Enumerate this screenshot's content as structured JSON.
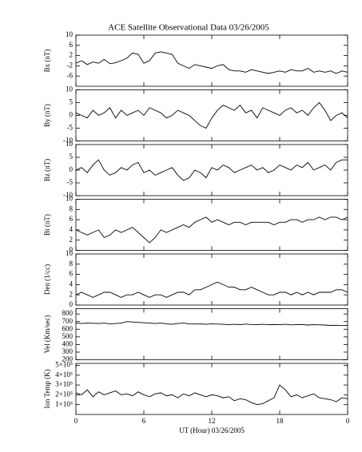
{
  "chart_data": [
    {
      "type": "line",
      "title": "ACE Satellite Observational Data   03/26/2005",
      "ylabel": "Bx (nT)",
      "color": "#000000",
      "x": [
        0,
        0.5,
        1,
        1.5,
        2,
        2.5,
        3,
        3.5,
        4,
        4.5,
        5,
        5.5,
        6,
        6.5,
        7,
        7.5,
        8,
        8.5,
        9,
        9.5,
        10,
        10.5,
        11,
        11.5,
        12,
        12.5,
        13,
        13.5,
        14,
        14.5,
        15,
        15.5,
        16,
        16.5,
        17,
        17.5,
        18,
        18.5,
        19,
        19.5,
        20,
        20.5,
        21,
        21.5,
        22,
        22.5,
        23,
        23.5,
        24
      ],
      "values": [
        -1,
        0,
        -1.5,
        -0.5,
        -1,
        0.5,
        -1.2,
        -0.8,
        0,
        1,
        3,
        2.5,
        -1,
        0,
        3,
        3.5,
        3,
        2.5,
        -1,
        -2,
        -3,
        -1.5,
        -2,
        -2.5,
        -3,
        -2,
        -1.5,
        -3.5,
        -4,
        -4,
        -4.5,
        -3.5,
        -4,
        -4.5,
        -5,
        -4.5,
        -4,
        -4.5,
        -3.5,
        -4,
        -4,
        -3,
        -4.5,
        -4,
        -4.5,
        -4,
        -5,
        -4,
        -4.5
      ],
      "ylim": [
        -10,
        10
      ],
      "yticks": [
        -6,
        -2,
        2,
        6,
        10
      ],
      "xlim": [
        0,
        24
      ],
      "xticks": [
        0,
        6,
        12,
        18,
        {
          "value": 24,
          "label": "0"
        }
      ]
    },
    {
      "type": "line",
      "ylabel": "By (nT)",
      "color": "#000000",
      "x": [
        0,
        0.5,
        1,
        1.5,
        2,
        2.5,
        3,
        3.5,
        4,
        4.5,
        5,
        5.5,
        6,
        6.5,
        7,
        7.5,
        8,
        8.5,
        9,
        9.5,
        10,
        10.5,
        11,
        11.5,
        12,
        12.5,
        13,
        13.5,
        14,
        14.5,
        15,
        15.5,
        16,
        16.5,
        17,
        17.5,
        18,
        18.5,
        19,
        19.5,
        20,
        20.5,
        21,
        21.5,
        22,
        22.5,
        23,
        23.5,
        24
      ],
      "values": [
        1,
        0,
        -1,
        2,
        0,
        1,
        3,
        -1,
        2,
        0,
        1,
        2,
        0,
        3,
        2,
        1,
        -1,
        0,
        2,
        1,
        0,
        -2,
        -4,
        -5,
        -1,
        2,
        4,
        3,
        2,
        4,
        1,
        2,
        -1,
        3,
        2,
        1,
        0,
        2,
        3,
        1,
        2,
        0,
        3,
        5,
        2,
        -2,
        0,
        1,
        -1
      ],
      "ylim": [
        -10,
        10
      ],
      "yticks": [
        -10,
        -5,
        0,
        5,
        10
      ],
      "xlim": [
        0,
        24
      ],
      "xticks": [
        0,
        6,
        12,
        18,
        {
          "value": 24,
          "label": "0"
        }
      ]
    },
    {
      "type": "line",
      "ylabel": "Bz (nT)",
      "color": "#000000",
      "x": [
        0,
        0.5,
        1,
        1.5,
        2,
        2.5,
        3,
        3.5,
        4,
        4.5,
        5,
        5.5,
        6,
        6.5,
        7,
        7.5,
        8,
        8.5,
        9,
        9.5,
        10,
        10.5,
        11,
        11.5,
        12,
        12.5,
        13,
        13.5,
        14,
        14.5,
        15,
        15.5,
        16,
        16.5,
        17,
        17.5,
        18,
        18.5,
        19,
        19.5,
        20,
        20.5,
        21,
        21.5,
        22,
        22.5,
        23,
        23.5,
        24
      ],
      "values": [
        0,
        1,
        -1,
        2,
        4,
        0,
        -2,
        -1,
        1,
        0,
        2,
        3,
        -1,
        0,
        -2,
        -1,
        0,
        1,
        -2,
        -4,
        -3,
        0,
        -1,
        -3,
        1,
        0,
        2,
        1,
        -1,
        0,
        1,
        2,
        0,
        1,
        -1,
        0,
        2,
        1,
        0,
        2,
        1,
        3,
        0,
        1,
        2,
        0,
        3,
        4,
        4
      ],
      "ylim": [
        -10,
        10
      ],
      "yticks": [
        -10,
        -5,
        0,
        5,
        10
      ],
      "xlim": [
        0,
        24
      ],
      "xticks": [
        0,
        6,
        12,
        18,
        {
          "value": 24,
          "label": "0"
        }
      ]
    },
    {
      "type": "line",
      "ylabel": "Bt (nT)",
      "color": "#000000",
      "x": [
        0,
        0.5,
        1,
        1.5,
        2,
        2.5,
        3,
        3.5,
        4,
        4.5,
        5,
        5.5,
        6,
        6.5,
        7,
        7.5,
        8,
        8.5,
        9,
        9.5,
        10,
        10.5,
        11,
        11.5,
        12,
        12.5,
        13,
        13.5,
        14,
        14.5,
        15,
        15.5,
        16,
        16.5,
        17,
        17.5,
        18,
        18.5,
        19,
        19.5,
        20,
        20.5,
        21,
        21.5,
        22,
        22.5,
        23,
        23.5,
        24
      ],
      "values": [
        4,
        3.5,
        3,
        3.5,
        4,
        2.5,
        3,
        4,
        3.5,
        4,
        4.5,
        3.5,
        2.5,
        1.5,
        2.5,
        4,
        3.5,
        4,
        4.5,
        5,
        4.5,
        5.5,
        6,
        6.5,
        5.5,
        6,
        5.5,
        5,
        5.5,
        5.5,
        5,
        5.5,
        5.5,
        5.5,
        5.5,
        5,
        5.5,
        5.5,
        6,
        6,
        5.5,
        6,
        6,
        6.5,
        6,
        6.5,
        6.5,
        6,
        6.5
      ],
      "ylim": [
        0,
        10
      ],
      "yticks": [
        0,
        2,
        4,
        6,
        8,
        10
      ],
      "xlim": [
        0,
        24
      ],
      "xticks": [
        0,
        6,
        12,
        18,
        {
          "value": 24,
          "label": "0"
        }
      ]
    },
    {
      "type": "line",
      "ylabel": "Den (1/cc)",
      "color": "#000000",
      "x": [
        0,
        0.5,
        1,
        1.5,
        2,
        2.5,
        3,
        3.5,
        4,
        4.5,
        5,
        5.5,
        6,
        6.5,
        7,
        7.5,
        8,
        8.5,
        9,
        9.5,
        10,
        10.5,
        11,
        11.5,
        12,
        12.5,
        13,
        13.5,
        14,
        14.5,
        15,
        15.5,
        16,
        16.5,
        17,
        17.5,
        18,
        18.5,
        19,
        19.5,
        20,
        20.5,
        21,
        21.5,
        22,
        22.5,
        23,
        23.5,
        24
      ],
      "values": [
        2,
        2.5,
        2,
        1.5,
        2,
        2.5,
        2.5,
        2,
        1.5,
        2,
        2,
        2.5,
        2,
        1.5,
        2,
        2,
        1.5,
        2,
        2.5,
        2.5,
        2,
        3,
        3,
        3.5,
        4,
        4.5,
        4,
        3.5,
        3.5,
        3,
        3,
        3.5,
        3,
        2.5,
        2,
        2,
        2.5,
        2.5,
        2,
        2.5,
        2,
        2.5,
        2,
        2.5,
        2.5,
        2.5,
        3,
        3,
        2.5
      ],
      "ylim": [
        0,
        10
      ],
      "yticks": [
        0,
        2,
        4,
        6,
        8,
        10
      ],
      "xlim": [
        0,
        24
      ],
      "xticks": [
        0,
        6,
        12,
        18,
        {
          "value": 24,
          "label": "0"
        }
      ]
    },
    {
      "type": "line",
      "ylabel": "Vel (Km/sec)",
      "color": "#000000",
      "x": [
        0,
        0.5,
        1,
        1.5,
        2,
        2.5,
        3,
        3.5,
        4,
        4.5,
        5,
        5.5,
        6,
        6.5,
        7,
        7.5,
        8,
        8.5,
        9,
        9.5,
        10,
        10.5,
        11,
        11.5,
        12,
        12.5,
        13,
        13.5,
        14,
        14.5,
        15,
        15.5,
        16,
        16.5,
        17,
        17.5,
        18,
        18.5,
        19,
        19.5,
        20,
        20.5,
        21,
        21.5,
        22,
        22.5,
        23,
        23.5,
        24
      ],
      "values": [
        680,
        675,
        680,
        678,
        675,
        680,
        670,
        675,
        680,
        700,
        695,
        690,
        685,
        680,
        675,
        680,
        670,
        665,
        675,
        680,
        670,
        668,
        670,
        665,
        670,
        668,
        665,
        660,
        665,
        660,
        668,
        662,
        660,
        665,
        660,
        662,
        660,
        665,
        658,
        660,
        662,
        655,
        660,
        658,
        655,
        650,
        652,
        648,
        650
      ],
      "ylim": [
        200,
        870
      ],
      "yticks": [
        200,
        300,
        400,
        500,
        600,
        700,
        800
      ],
      "xlim": [
        0,
        24
      ],
      "xticks": [
        0,
        6,
        12,
        18,
        {
          "value": 24,
          "label": "0"
        }
      ]
    },
    {
      "type": "line",
      "ylabel": "Ion Temp (K)",
      "xlabel": "UT (Hour)   03/26/2005",
      "color": "#000000",
      "x": [
        0,
        0.5,
        1,
        1.5,
        2,
        2.5,
        3,
        3.5,
        4,
        4.5,
        5,
        5.5,
        6,
        6.5,
        7,
        7.5,
        8,
        8.5,
        9,
        9.5,
        10,
        10.5,
        11,
        11.5,
        12,
        12.5,
        13,
        13.5,
        14,
        14.5,
        15,
        15.5,
        16,
        16.5,
        17,
        17.5,
        18,
        18.5,
        19,
        19.5,
        20,
        20.5,
        21,
        21.5,
        22,
        22.5,
        23,
        23.5,
        24
      ],
      "values": [
        220000,
        200000,
        250000,
        180000,
        230000,
        200000,
        220000,
        240000,
        200000,
        210000,
        190000,
        230000,
        200000,
        180000,
        210000,
        220000,
        190000,
        200000,
        170000,
        210000,
        190000,
        220000,
        200000,
        180000,
        200000,
        190000,
        170000,
        180000,
        140000,
        160000,
        150000,
        120000,
        100000,
        110000,
        140000,
        170000,
        300000,
        250000,
        180000,
        200000,
        170000,
        190000,
        210000,
        170000,
        160000,
        150000,
        130000,
        170000,
        160000
      ],
      "ylim": [
        0,
        520000
      ],
      "yticks": [
        {
          "value": 100000,
          "label": "1×10⁵"
        },
        {
          "value": 200000,
          "label": "2×10⁵"
        },
        {
          "value": 300000,
          "label": "3×10⁵"
        },
        {
          "value": 400000,
          "label": "4×10⁵"
        },
        {
          "value": 500000,
          "label": "5×10⁵"
        }
      ],
      "xlim": [
        0,
        24
      ],
      "xticks": [
        0,
        6,
        12,
        18,
        {
          "value": 24,
          "label": "0"
        }
      ],
      "show_xtick_labels": true
    }
  ]
}
